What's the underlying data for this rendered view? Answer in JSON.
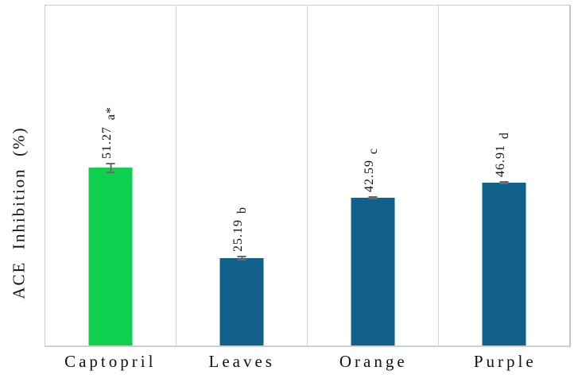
{
  "chart_data": {
    "type": "bar",
    "title": "",
    "xlabel": "",
    "ylabel": "ACE  Inhibition  (%)",
    "ylim": [
      0,
      98
    ],
    "grid": "vertical-panel-separators-only",
    "legend": "none",
    "axis_visible_ticks": "none",
    "categories": [
      "Captopril",
      "Leaves",
      "Orange",
      "Purple"
    ],
    "values": [
      51.27,
      25.19,
      42.59,
      46.91
    ],
    "value_labels": [
      "51.27",
      "25.19",
      "42.59",
      "46.91"
    ],
    "significance_letters": [
      "a*",
      "b",
      "c",
      "d"
    ],
    "errors": [
      1.5,
      0.7,
      0.5,
      0.4
    ],
    "bar_colors": [
      "#0ecf4e",
      "#11618a",
      "#11618a",
      "#11618a"
    ],
    "error_bar_color": "#6b6b6b",
    "panel_border_color": "#d6d6d6",
    "background_color": "#ffffff",
    "text_color": "#111111"
  }
}
